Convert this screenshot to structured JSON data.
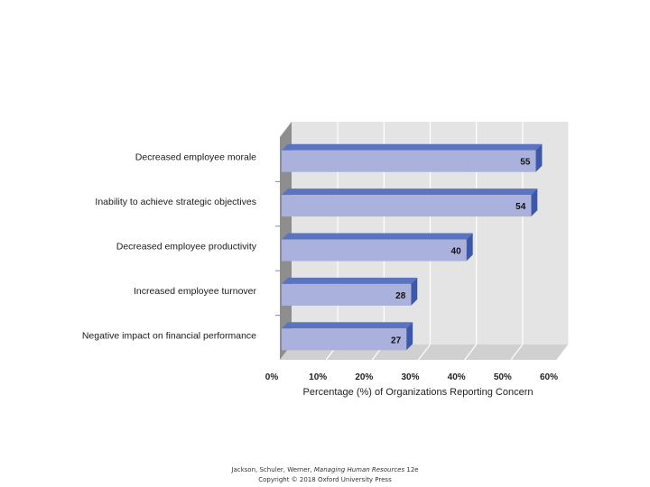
{
  "chart_data": {
    "type": "bar",
    "orientation": "horizontal",
    "style": "3d",
    "categories": [
      "Decreased employee morale",
      "Inability to achieve strategic objectives",
      "Decreased employee productivity",
      "Increased employee turnover",
      "Negative impact on financial performance"
    ],
    "values": [
      55,
      54,
      40,
      28,
      27
    ],
    "data_labels": [
      "55",
      "54",
      "40",
      "28",
      "27"
    ],
    "xlabel": "Percentage (%) of Organizations Reporting Concern",
    "xlim": [
      0,
      60
    ],
    "x_ticks": [
      "0%",
      "10%",
      "20%",
      "30%",
      "40%",
      "50%",
      "60%"
    ],
    "grid": true,
    "legend": "none"
  },
  "colors": {
    "bar_front": "#a9b1dc",
    "bar_top": "#5a74c2",
    "bar_side": "#3d58a8",
    "wall_back": "#e4e4e4",
    "wall_left": "#8e8e8e",
    "floor": "#d0d0d0",
    "grid": "#ffffff"
  },
  "footer": {
    "authors": "Jackson, Schuler, Werner,",
    "book_title": "Managing Human Resources",
    "edition": "12e",
    "copyright": "Copyright © 2018 Oxford University Press"
  }
}
